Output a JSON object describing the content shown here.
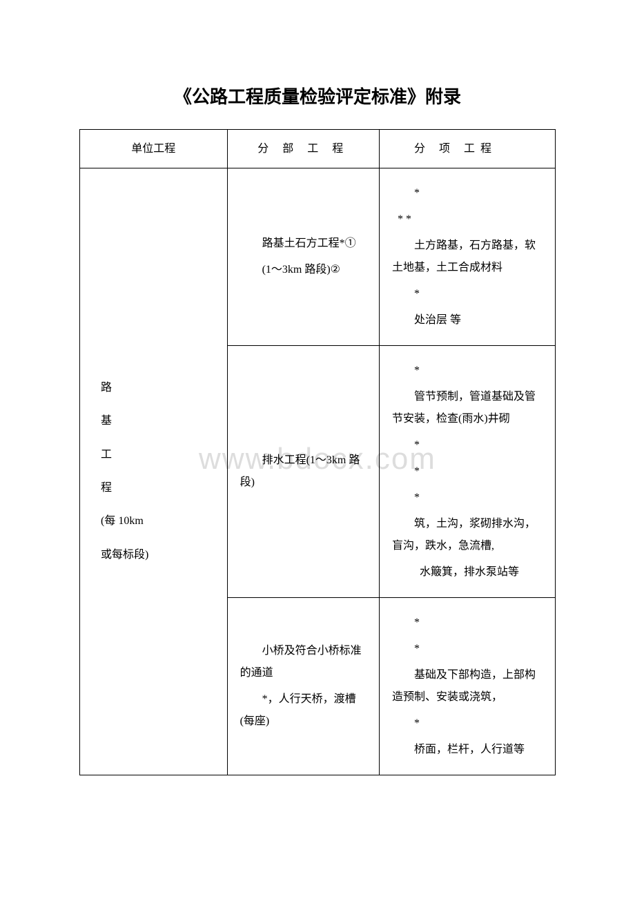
{
  "title": "《公路工程质量检验评定标准》附录",
  "watermark": "www.bdocx.com",
  "headers": {
    "col1": "单位工程",
    "col2": "分 部 工 程",
    "col3": "分  项  工程"
  },
  "unit": {
    "line1": "路",
    "line2": "基",
    "line3": "工",
    "line4": "程",
    "line5": "(每 10km",
    "line6": "或每标段)"
  },
  "rows": [
    {
      "division": {
        "p1": "路基土石方工程*①",
        "p2": "(1～3km 路段)②"
      },
      "items": {
        "p1": "*",
        "p2": "*           *",
        "p3": "土方路基，石方路基，软土地基，土工合成材料",
        "p4": "*",
        "p5": "处治层 等"
      }
    },
    {
      "division": {
        "p1": "排水工程(1～3km 路段)"
      },
      "items": {
        "p1": "*",
        "p2": "管节预制，管道基础及管节安装，检查(雨水)井砌",
        "p3": "*",
        "p4": "        *",
        "p5": "*",
        "p6": "筑，土沟，浆砌排水沟，盲沟，跌水，急流槽,",
        "p7": "水簸箕，排水泵站等"
      }
    },
    {
      "division": {
        "p1": "小桥及符合小桥标准的通道",
        "p2": "*，人行天桥，渡槽(每座)"
      },
      "items": {
        "p1": "*",
        "p2": "*",
        "p3": "基础及下部构造，上部构造预制、安装或浇筑，",
        "p4": "*",
        "p5": "桥面，栏杆，人行道等"
      }
    }
  ],
  "styles": {
    "background_color": "#ffffff",
    "text_color": "#000000",
    "border_color": "#000000",
    "watermark_color": "#dddddd",
    "title_fontsize": 26,
    "body_fontsize": 16,
    "watermark_fontsize": 44
  }
}
